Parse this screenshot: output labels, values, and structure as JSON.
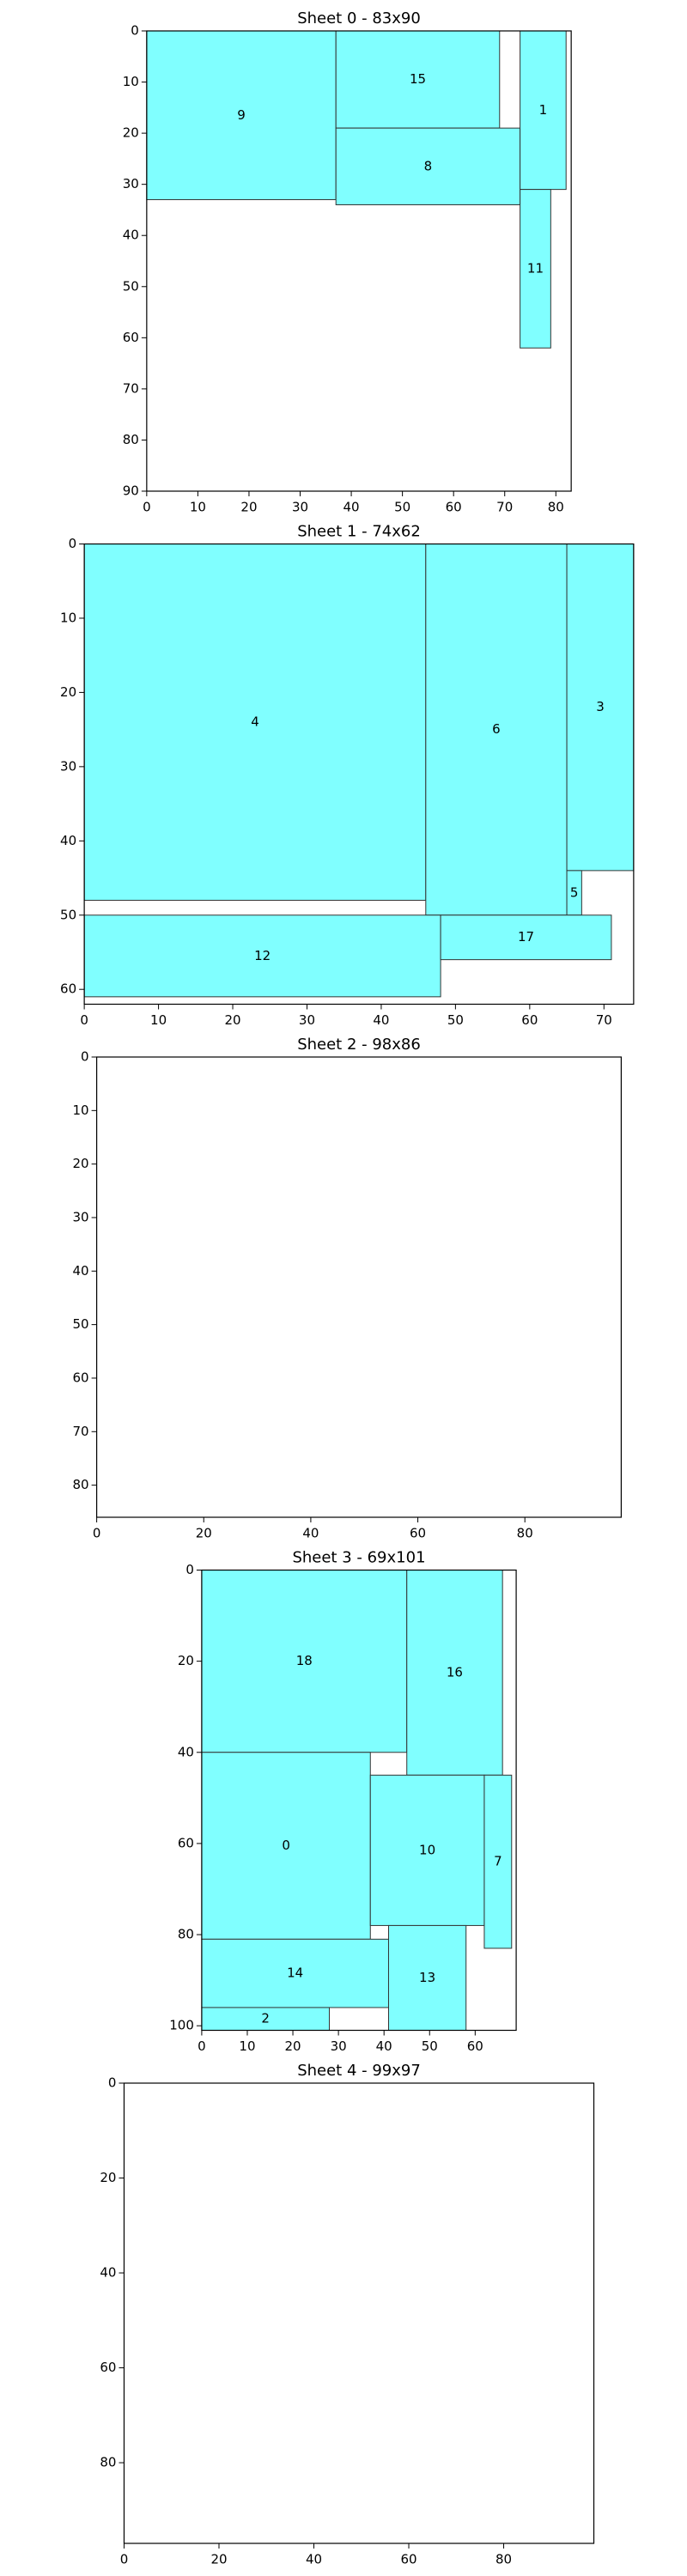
{
  "chart_data": [
    {
      "type": "rect",
      "title": "Sheet 0 - 83x90",
      "xlim": [
        0,
        83
      ],
      "ylim": [
        90,
        0
      ],
      "xticks": [
        0,
        10,
        20,
        30,
        40,
        50,
        60,
        70,
        80
      ],
      "yticks": [
        0,
        10,
        20,
        30,
        40,
        50,
        60,
        70,
        80,
        90
      ],
      "color": "#80ffff",
      "rects": [
        {
          "label": "9",
          "x": 0,
          "y": 0,
          "width": 37,
          "height": 33
        },
        {
          "label": "15",
          "x": 37,
          "y": 0,
          "width": 32,
          "height": 19
        },
        {
          "label": "8",
          "x": 37,
          "y": 19,
          "width": 36,
          "height": 15
        },
        {
          "label": "1",
          "x": 73,
          "y": 0,
          "width": 9,
          "height": 31
        },
        {
          "label": "11",
          "x": 73,
          "y": 31,
          "width": 6,
          "height": 31
        }
      ]
    },
    {
      "type": "rect",
      "title": "Sheet 1 - 74x62",
      "xlim": [
        0,
        74
      ],
      "ylim": [
        62,
        0
      ],
      "xticks": [
        0,
        10,
        20,
        30,
        40,
        50,
        60,
        70
      ],
      "yticks": [
        0,
        10,
        20,
        30,
        40,
        50,
        60
      ],
      "color": "#80ffff",
      "rects": [
        {
          "label": "4",
          "x": 0,
          "y": 0,
          "width": 46,
          "height": 48
        },
        {
          "label": "6",
          "x": 46,
          "y": 0,
          "width": 19,
          "height": 50
        },
        {
          "label": "3",
          "x": 65,
          "y": 0,
          "width": 9,
          "height": 44
        },
        {
          "label": "5",
          "x": 65,
          "y": 44,
          "width": 2,
          "height": 6
        },
        {
          "label": "12",
          "x": 0,
          "y": 50,
          "width": 48,
          "height": 11
        },
        {
          "label": "17",
          "x": 48,
          "y": 50,
          "width": 23,
          "height": 6
        }
      ]
    },
    {
      "type": "rect",
      "title": "Sheet 2 - 98x86",
      "xlim": [
        0,
        98
      ],
      "ylim": [
        86,
        0
      ],
      "xticks": [
        0,
        20,
        40,
        60,
        80
      ],
      "yticks": [
        0,
        10,
        20,
        30,
        40,
        50,
        60,
        70,
        80
      ],
      "color": "#80ffff",
      "rects": []
    },
    {
      "type": "rect",
      "title": "Sheet 3 - 69x101",
      "xlim": [
        0,
        69
      ],
      "ylim": [
        101,
        0
      ],
      "xticks": [
        0,
        10,
        20,
        30,
        40,
        50,
        60
      ],
      "yticks": [
        0,
        20,
        40,
        60,
        80,
        100
      ],
      "color": "#80ffff",
      "rects": [
        {
          "label": "18",
          "x": 0,
          "y": 0,
          "width": 45,
          "height": 40
        },
        {
          "label": "16",
          "x": 45,
          "y": 0,
          "width": 21,
          "height": 45
        },
        {
          "label": "0",
          "x": 0,
          "y": 40,
          "width": 37,
          "height": 41
        },
        {
          "label": "10",
          "x": 37,
          "y": 45,
          "width": 25,
          "height": 33
        },
        {
          "label": "7",
          "x": 62,
          "y": 45,
          "width": 6,
          "height": 38
        },
        {
          "label": "14",
          "x": 0,
          "y": 81,
          "width": 41,
          "height": 15
        },
        {
          "label": "13",
          "x": 41,
          "y": 78,
          "width": 17,
          "height": 23
        },
        {
          "label": "2",
          "x": 0,
          "y": 96,
          "width": 28,
          "height": 5
        }
      ]
    },
    {
      "type": "rect",
      "title": "Sheet 4 - 99x97",
      "xlim": [
        0,
        99
      ],
      "ylim": [
        97,
        0
      ],
      "xticks": [
        0,
        20,
        40,
        60,
        80
      ],
      "yticks": [
        0,
        20,
        40,
        60,
        80
      ],
      "color": "#80ffff",
      "rects": []
    }
  ]
}
